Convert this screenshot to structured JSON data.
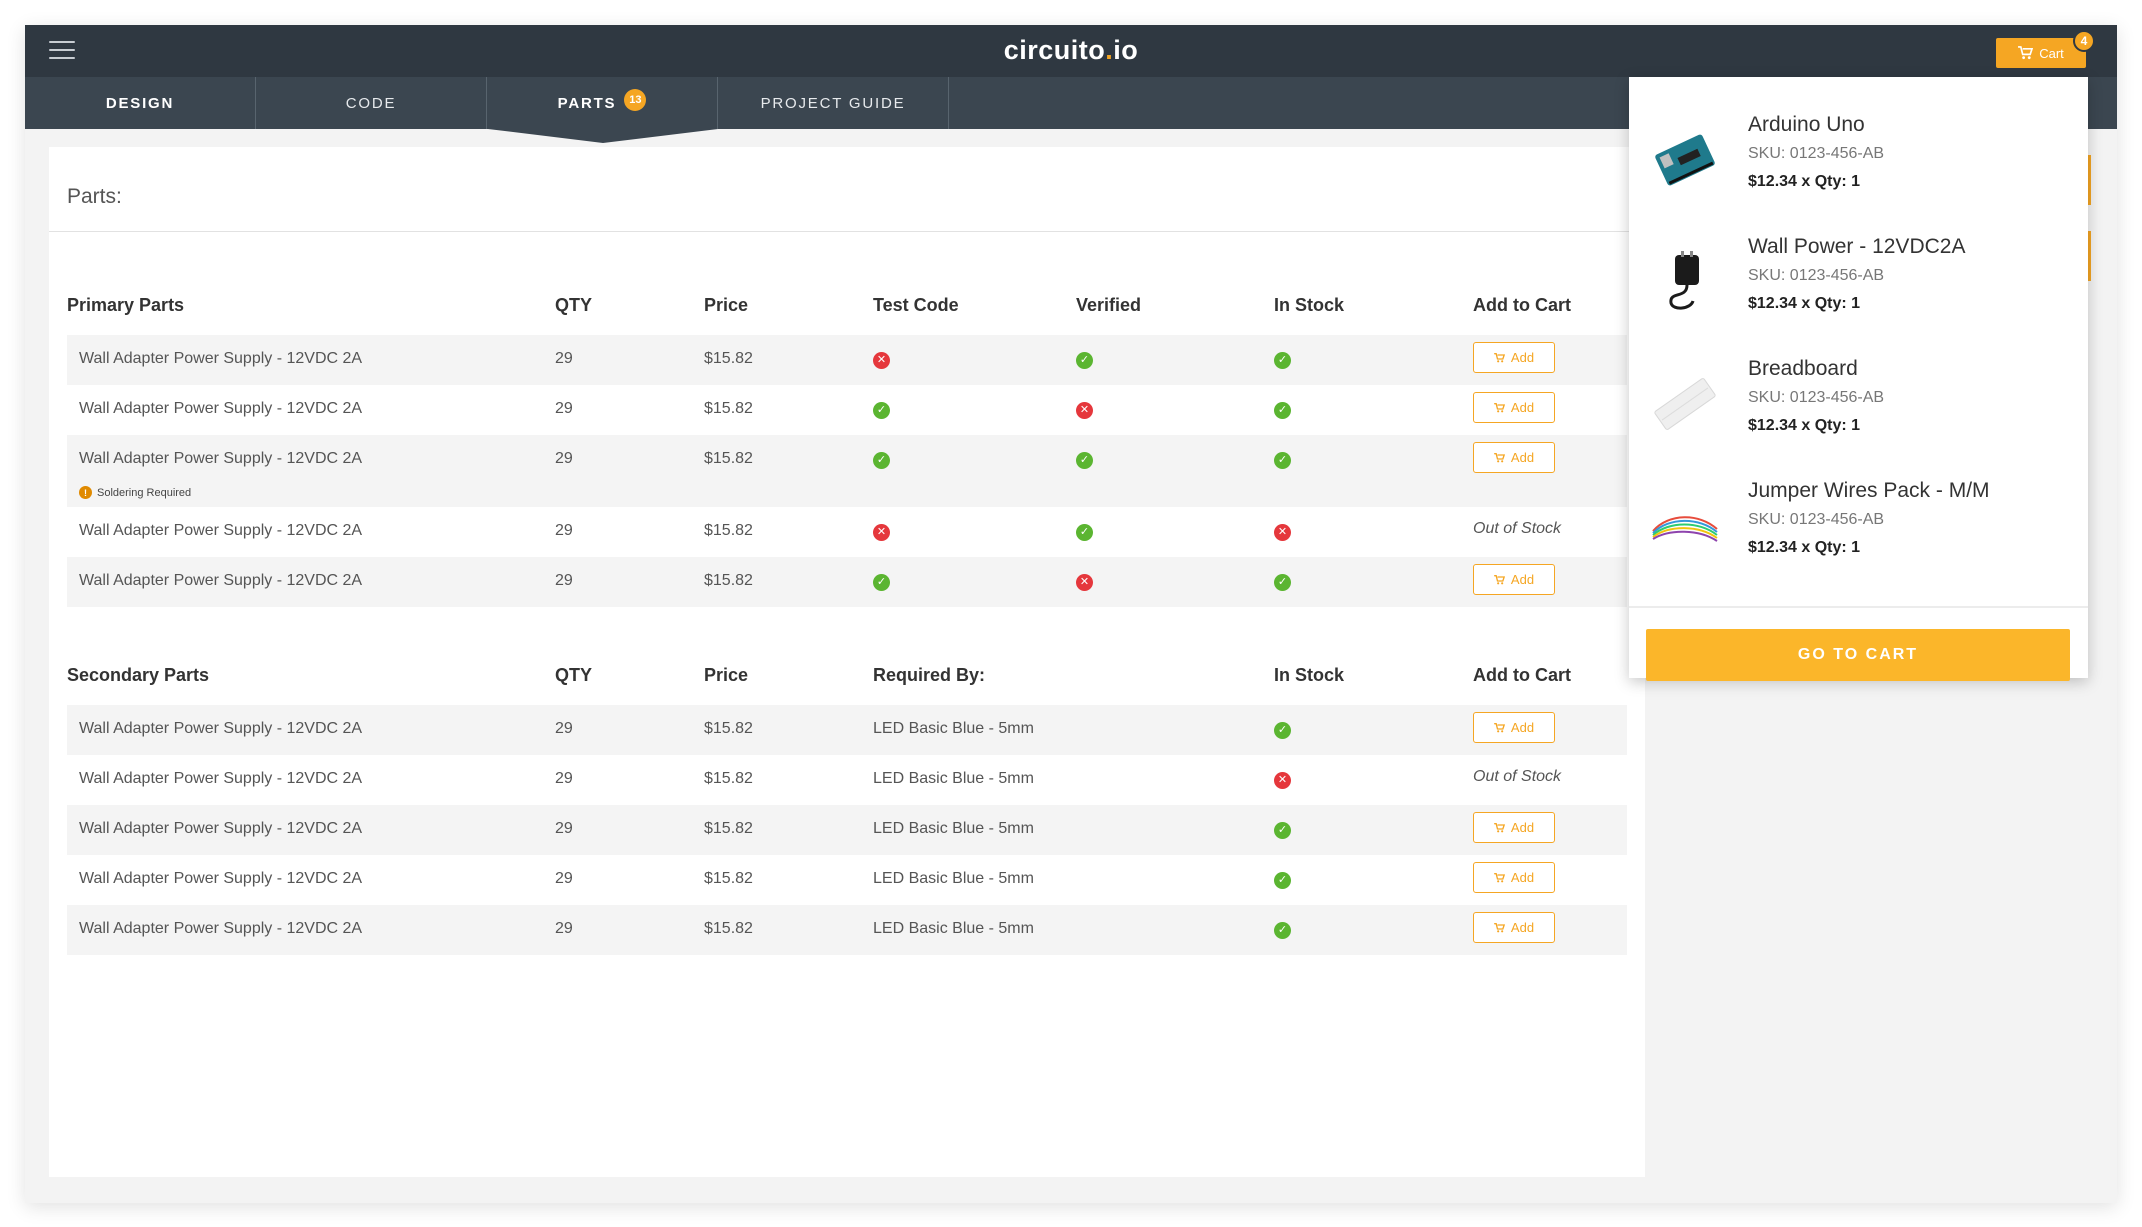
{
  "header": {
    "logo_main": "circuito",
    "logo_dot": ".",
    "logo_tld": "io",
    "cart_label": "Cart",
    "cart_count": "4"
  },
  "tabs": [
    {
      "label": "DESIGN"
    },
    {
      "label": "CODE"
    },
    {
      "label": "PARTS",
      "badge": "13"
    },
    {
      "label": "PROJECT GUIDE"
    }
  ],
  "panel": {
    "title": "Parts:"
  },
  "primary": {
    "headers": {
      "name": "Primary Parts",
      "qty": "QTY",
      "price": "Price",
      "test": "Test Code",
      "verified": "Verified",
      "stock": "In Stock",
      "cart": "Add to Cart"
    },
    "rows": [
      {
        "name": "Wall Adapter Power Supply - 12VDC 2A",
        "qty": "29",
        "price": "$15.82",
        "test": false,
        "verified": true,
        "stock": true,
        "cart": "Add"
      },
      {
        "name": "Wall Adapter Power Supply - 12VDC 2A",
        "qty": "29",
        "price": "$15.82",
        "test": true,
        "verified": false,
        "stock": true,
        "cart": "Add"
      },
      {
        "name": "Wall Adapter Power Supply - 12VDC 2A",
        "qty": "29",
        "price": "$15.82",
        "test": true,
        "verified": true,
        "stock": true,
        "cart": "Add",
        "note": "Soldering Required"
      },
      {
        "name": "Wall Adapter Power Supply - 12VDC 2A",
        "qty": "29",
        "price": "$15.82",
        "test": false,
        "verified": true,
        "stock": false,
        "cart": "Out of Stock"
      },
      {
        "name": "Wall Adapter Power Supply - 12VDC 2A",
        "qty": "29",
        "price": "$15.82",
        "test": true,
        "verified": false,
        "stock": true,
        "cart": "Add"
      }
    ]
  },
  "secondary": {
    "headers": {
      "name": "Secondary Parts",
      "qty": "QTY",
      "price": "Price",
      "required": "Required By:",
      "stock": "In Stock",
      "cart": "Add to Cart"
    },
    "rows": [
      {
        "name": "Wall Adapter Power Supply - 12VDC 2A",
        "qty": "29",
        "price": "$15.82",
        "required": "LED Basic Blue - 5mm",
        "stock": true,
        "cart": "Add"
      },
      {
        "name": "Wall Adapter Power Supply - 12VDC 2A",
        "qty": "29",
        "price": "$15.82",
        "required": "LED Basic Blue - 5mm",
        "stock": false,
        "cart": "Out of Stock"
      },
      {
        "name": "Wall Adapter Power Supply - 12VDC 2A",
        "qty": "29",
        "price": "$15.82",
        "required": "LED Basic Blue - 5mm",
        "stock": true,
        "cart": "Add"
      },
      {
        "name": "Wall Adapter Power Supply - 12VDC 2A",
        "qty": "29",
        "price": "$15.82",
        "required": "LED Basic Blue - 5mm",
        "stock": true,
        "cart": "Add"
      },
      {
        "name": "Wall Adapter Power Supply - 12VDC 2A",
        "qty": "29",
        "price": "$15.82",
        "required": "LED Basic Blue - 5mm",
        "stock": true,
        "cart": "Add"
      }
    ]
  },
  "cart_dropdown": {
    "items": [
      {
        "name": "Arduino Uno",
        "sku": "SKU: 0123-456-AB",
        "price": "$12.34 x Qty: 1",
        "icon": "arduino-board-icon"
      },
      {
        "name": "Wall Power - 12VDC2A",
        "sku": "SKU: 0123-456-AB",
        "price": "$12.34 x Qty: 1",
        "icon": "power-adapter-icon"
      },
      {
        "name": "Breadboard",
        "sku": "SKU: 0123-456-AB",
        "price": "$12.34 x Qty: 1",
        "icon": "breadboard-icon"
      },
      {
        "name": "Jumper Wires Pack - M/M",
        "sku": "SKU: 0123-456-AB",
        "price": "$12.34 x Qty: 1",
        "icon": "jumper-wires-icon"
      }
    ],
    "button": "GO TO CART"
  },
  "colors": {
    "accent": "#f5a623",
    "topbar": "#2f3841",
    "tabbar": "#3b4650",
    "ok": "#5bb531",
    "error": "#e5373c"
  }
}
